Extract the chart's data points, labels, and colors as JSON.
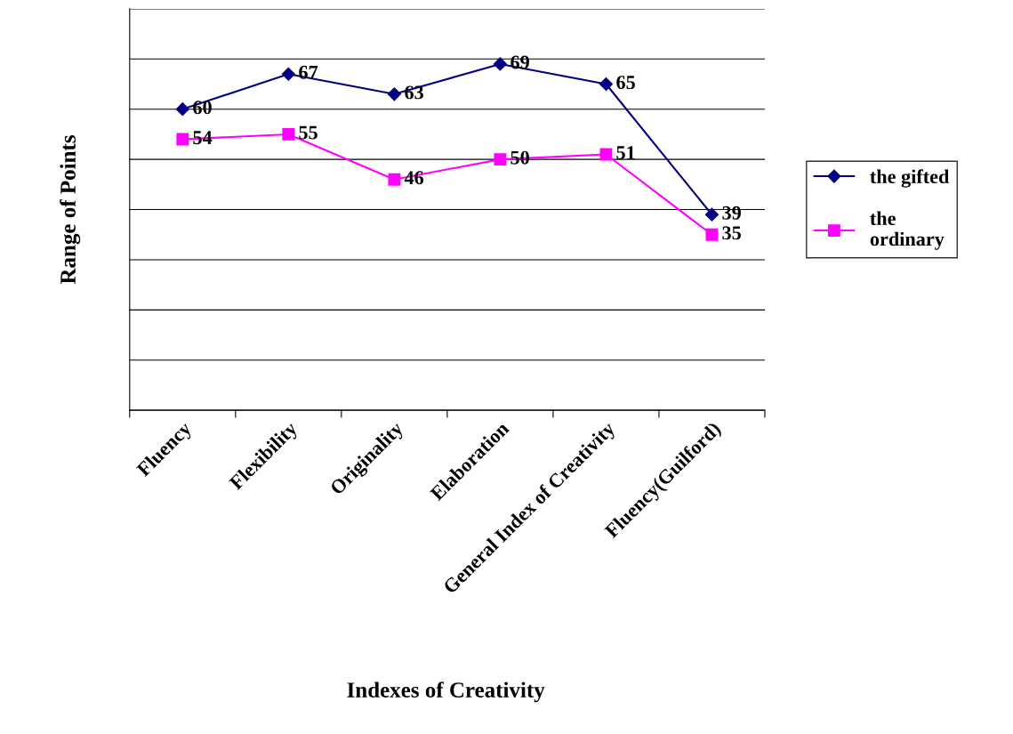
{
  "chart_data": {
    "type": "line",
    "xlabel": "Indexes of Creativity",
    "ylabel": "Range of Points",
    "categories": [
      "Fluency",
      "Flexibility",
      "Originality",
      "Elaboration",
      "General Index of Creativity",
      "Fluency(Guilford)"
    ],
    "series": [
      {
        "name": "the gifted",
        "color": "#000080",
        "values": [
          60,
          67,
          63,
          69,
          65,
          39
        ],
        "marker": "diamond"
      },
      {
        "name": "the ordinary",
        "color": "#ff00ff",
        "values": [
          54,
          55,
          46,
          50,
          51,
          35
        ],
        "marker": "square"
      }
    ],
    "ylim": [
      0,
      80
    ],
    "yticks": [
      {
        "value": 0,
        "label": null
      },
      {
        "value": 10,
        "label": null
      },
      {
        "value": 20,
        "label": null
      },
      {
        "value": 30,
        "label": null
      },
      {
        "value": 40,
        "label": null
      },
      {
        "value": 50,
        "label": null
      },
      {
        "value": 60,
        "label": null
      },
      {
        "value": 70,
        "label": null
      },
      {
        "value": 80,
        "label": null
      }
    ],
    "tick_labels": "x",
    "grid": "y",
    "legend": "right",
    "data_labels": true,
    "line_style": "solid"
  }
}
